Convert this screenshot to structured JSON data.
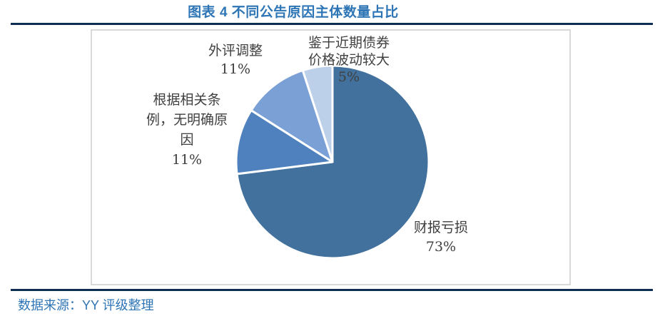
{
  "figure": {
    "title": "图表 4 不同公告原因主体数量占比",
    "source": "数据来源：YY 评级整理"
  },
  "colors": {
    "accent_blue": "#2E75B6",
    "rule_navy": "#0C2E52",
    "label_gray": "#404040",
    "chart_border_gray": "#D9D9D9"
  },
  "chart_data": {
    "type": "pie",
    "title": "图表 4 不同公告原因主体数量占比",
    "direction": "clockwise",
    "start_angle_deg": 0,
    "slice_border_color": "#FFFFFF",
    "legend_position": "none",
    "slices": [
      {
        "label": "财报亏损",
        "value": 73,
        "pct_label": "73%",
        "color": "#41719C",
        "label_lines": [
          "财报亏损",
          "73%"
        ]
      },
      {
        "label": "根据相关条例，无明确原因",
        "value": 11,
        "pct_label": "11%",
        "color": "#4E81BD",
        "label_lines": [
          "根据相关条",
          "例，无明确原",
          "因",
          "11%"
        ]
      },
      {
        "label": "外评调整",
        "value": 11,
        "pct_label": "11%",
        "color": "#7AA0D6",
        "label_lines": [
          "外评调整",
          "11%"
        ]
      },
      {
        "label": "鉴于近期债券价格波动较大",
        "value": 5,
        "pct_label": "5%",
        "color": "#BDD0E9",
        "label_lines": [
          "鉴于近期债券",
          "价格波动较大",
          "5%"
        ]
      }
    ]
  }
}
